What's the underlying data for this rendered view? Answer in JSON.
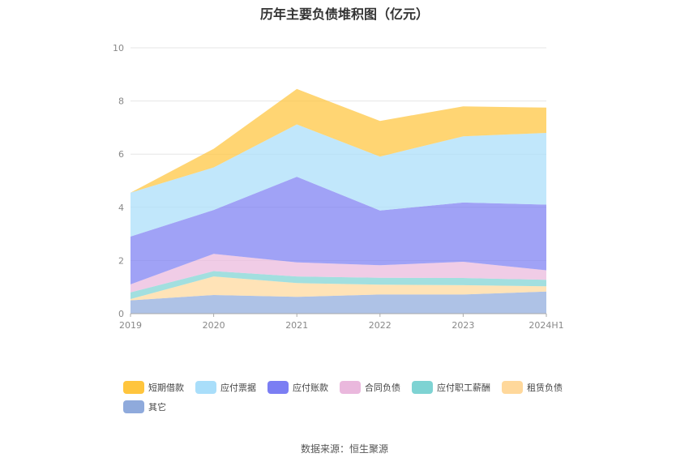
{
  "chart_data": {
    "type": "area",
    "title": "历年主要负债堆积图（亿元）",
    "x": [
      "2019",
      "2020",
      "2021",
      "2022",
      "2023",
      "2024H1"
    ],
    "ylim": [
      0,
      10
    ],
    "yticks": [
      0,
      2,
      4,
      6,
      8,
      10
    ],
    "stacked": true,
    "grid": true,
    "legend_position": "bottom",
    "series": [
      {
        "name": "其它",
        "color": "#8FAADC",
        "values": [
          0.5,
          0.7,
          0.63,
          0.72,
          0.72,
          0.83
        ]
      },
      {
        "name": "租赁负债",
        "color": "#FFD89B",
        "values": [
          0.05,
          0.7,
          0.52,
          0.37,
          0.35,
          0.2
        ]
      },
      {
        "name": "应付职工薪酬",
        "color": "#7ED3D3",
        "values": [
          0.25,
          0.2,
          0.25,
          0.26,
          0.27,
          0.24
        ]
      },
      {
        "name": "合同负债",
        "color": "#EAB8DD",
        "values": [
          0.3,
          0.65,
          0.53,
          0.47,
          0.61,
          0.36
        ]
      },
      {
        "name": "应付账款",
        "color": "#7B7EF3",
        "values": [
          1.8,
          1.65,
          3.22,
          2.06,
          2.23,
          2.47
        ]
      },
      {
        "name": "应付票据",
        "color": "#A9DEFA",
        "values": [
          1.65,
          1.6,
          1.97,
          2.03,
          2.49,
          2.7
        ]
      },
      {
        "name": "短期借款",
        "color": "#FFC53D",
        "values": [
          0.0,
          0.7,
          1.33,
          1.34,
          1.13,
          0.95
        ]
      }
    ],
    "legend_order": [
      "短期借款",
      "应付票据",
      "应付账款",
      "合同负债",
      "应付职工薪酬",
      "租赁负债",
      "其它"
    ]
  },
  "source_note": "数据来源：恒生聚源"
}
